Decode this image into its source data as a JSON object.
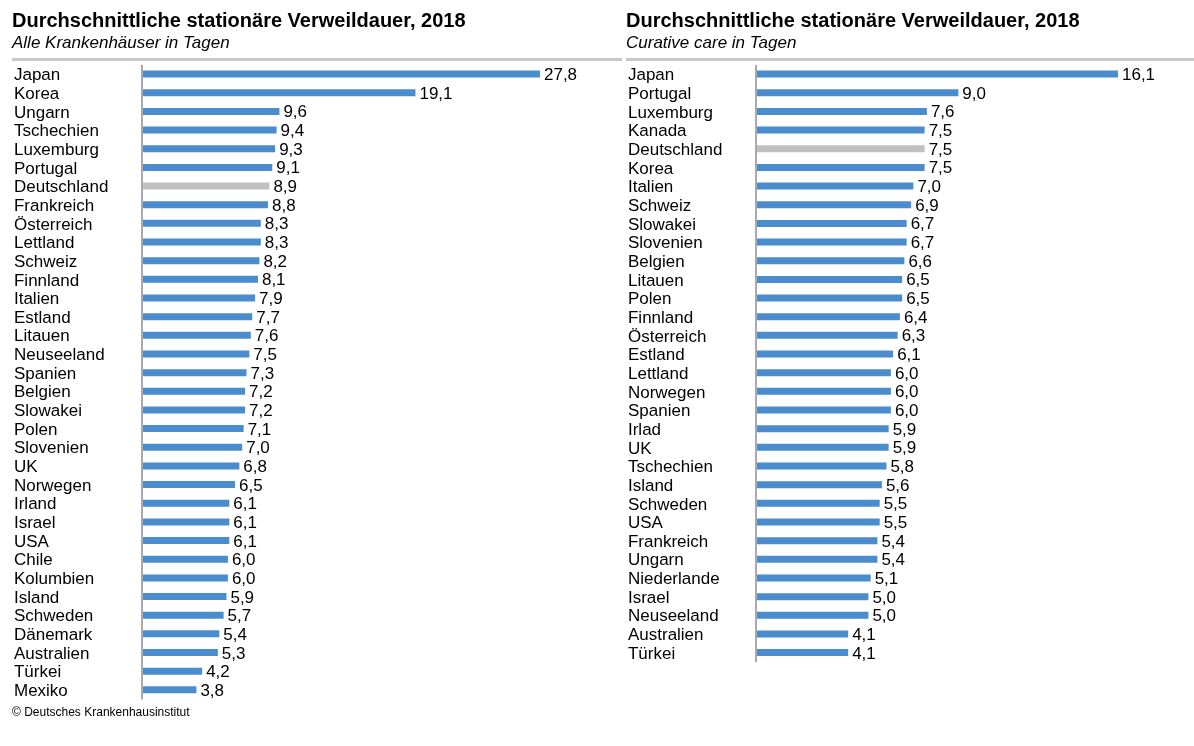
{
  "chart_data": [
    {
      "type": "bar",
      "orientation": "horizontal",
      "title": "Durchschnittliche stationäre Verweildauer, 2018",
      "subtitle": "Alle Krankenhäuser in Tagen",
      "categories": [
        "Japan",
        "Korea",
        "Ungarn",
        "Tschechien",
        "Luxemburg",
        "Portugal",
        "Deutschland",
        "Frankreich",
        "Österreich",
        "Lettland",
        "Schweiz",
        "Finnland",
        "Italien",
        "Estland",
        "Litauen",
        "Neuseeland",
        "Spanien",
        "Belgien",
        "Slowakei",
        "Polen",
        "Slovenien",
        "UK",
        "Norwegen",
        "Irland",
        "Israel",
        "USA",
        "Chile",
        "Kolumbien",
        "Island",
        "Schweden",
        "Dänemark",
        "Australien",
        "Türkei",
        "Mexiko"
      ],
      "values": [
        27.8,
        19.1,
        9.6,
        9.4,
        9.3,
        9.1,
        8.9,
        8.8,
        8.3,
        8.3,
        8.2,
        8.1,
        7.9,
        7.7,
        7.6,
        7.5,
        7.3,
        7.2,
        7.2,
        7.1,
        7.0,
        6.8,
        6.5,
        6.1,
        6.1,
        6.1,
        6.0,
        6.0,
        5.9,
        5.7,
        5.4,
        5.3,
        4.2,
        3.8
      ],
      "value_labels": [
        "27,8",
        "19,1",
        "9,6",
        "9,4",
        "9,3",
        "9,1",
        "8,9",
        "8,8",
        "8,3",
        "8,3",
        "8,2",
        "8,1",
        "7,9",
        "7,7",
        "7,6",
        "7,5",
        "7,3",
        "7,2",
        "7,2",
        "7,1",
        "7,0",
        "6,8",
        "6,5",
        "6,1",
        "6,1",
        "6,1",
        "6,0",
        "6,0",
        "5,9",
        "5,7",
        "5,4",
        "5,3",
        "4,2",
        "3,8"
      ],
      "colors": [
        "#4a8ccc",
        "#4a8ccc",
        "#4a8ccc",
        "#4a8ccc",
        "#4a8ccc",
        "#4a8ccc",
        "#c0c0c0",
        "#4a8ccc",
        "#4a8ccc",
        "#4a8ccc",
        "#4a8ccc",
        "#4a8ccc",
        "#4a8ccc",
        "#4a8ccc",
        "#4a8ccc",
        "#4a8ccc",
        "#4a8ccc",
        "#4a8ccc",
        "#4a8ccc",
        "#4a8ccc",
        "#4a8ccc",
        "#4a8ccc",
        "#4a8ccc",
        "#4a8ccc",
        "#4a8ccc",
        "#4a8ccc",
        "#4a8ccc",
        "#4a8ccc",
        "#4a8ccc",
        "#4a8ccc",
        "#4a8ccc",
        "#4a8ccc",
        "#4a8ccc",
        "#4a8ccc"
      ],
      "annotations": [
        "© Deutsches Krankenhausinstitut"
      ]
    },
    {
      "type": "bar",
      "orientation": "horizontal",
      "title": "Durchschnittliche stationäre Verweildauer, 2018",
      "subtitle": "Curative care in Tagen",
      "categories": [
        "Japan",
        "Portugal",
        "Luxemburg",
        "Kanada",
        "Deutschland",
        "Korea",
        "Italien",
        "Schweiz",
        "Slowakei",
        "Slovenien",
        "Belgien",
        "Litauen",
        "Polen",
        "Finnland",
        "Österreich",
        "Estland",
        "Lettland",
        "Norwegen",
        "Spanien",
        "Irlad",
        "UK",
        "Tschechien",
        "Island",
        "Schweden",
        "USA",
        "Frankreich",
        "Ungarn",
        "Niederlande",
        "Israel",
        "Neuseeland",
        "Australien",
        "Türkei"
      ],
      "values": [
        16.1,
        9.0,
        7.6,
        7.5,
        7.5,
        7.5,
        7.0,
        6.9,
        6.7,
        6.7,
        6.6,
        6.5,
        6.5,
        6.4,
        6.3,
        6.1,
        6.0,
        6.0,
        6.0,
        5.9,
        5.9,
        5.8,
        5.6,
        5.5,
        5.5,
        5.4,
        5.4,
        5.1,
        5.0,
        5.0,
        4.1,
        4.1
      ],
      "value_labels": [
        "16,1",
        "9,0",
        "7,6",
        "7,5",
        "7,5",
        "7,5",
        "7,0",
        "6,9",
        "6,7",
        "6,7",
        "6,6",
        "6,5",
        "6,5",
        "6,4",
        "6,3",
        "6,1",
        "6,0",
        "6,0",
        "6,0",
        "5,9",
        "5,9",
        "5,8",
        "5,6",
        "5,5",
        "5,5",
        "5,4",
        "5,4",
        "5,1",
        "5,0",
        "5,0",
        "4,1",
        "4,1"
      ],
      "colors": [
        "#4a8ccc",
        "#4a8ccc",
        "#4a8ccc",
        "#4a8ccc",
        "#c0c0c0",
        "#4a8ccc",
        "#4a8ccc",
        "#4a8ccc",
        "#4a8ccc",
        "#4a8ccc",
        "#4a8ccc",
        "#4a8ccc",
        "#4a8ccc",
        "#4a8ccc",
        "#4a8ccc",
        "#4a8ccc",
        "#4a8ccc",
        "#4a8ccc",
        "#4a8ccc",
        "#4a8ccc",
        "#4a8ccc",
        "#4a8ccc",
        "#4a8ccc",
        "#4a8ccc",
        "#4a8ccc",
        "#4a8ccc",
        "#4a8ccc",
        "#4a8ccc",
        "#4a8ccc",
        "#4a8ccc",
        "#4a8ccc",
        "#4a8ccc"
      ]
    }
  ]
}
